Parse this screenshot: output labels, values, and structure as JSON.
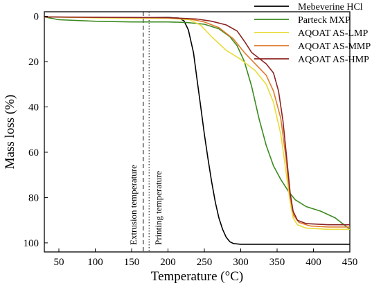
{
  "chart_data": {
    "type": "line",
    "title": "",
    "xlabel": "Temperature (°C)",
    "ylabel": "Mass loss (%)",
    "xlim": [
      30,
      450
    ],
    "ylim": [
      -2,
      104
    ],
    "y_inverted": true,
    "x_ticks": [
      50,
      100,
      150,
      200,
      250,
      300,
      350,
      400,
      450
    ],
    "y_ticks": [
      0,
      20,
      40,
      60,
      80,
      100
    ],
    "grid": false,
    "legend_position": "top-right",
    "series": [
      {
        "name": "Mebeverine HCl",
        "color": "#000000",
        "x": [
          30,
          100,
          150,
          200,
          215,
          222,
          228,
          235,
          240,
          245,
          250,
          255,
          260,
          265,
          270,
          275,
          280,
          285,
          290,
          300,
          350,
          450
        ],
        "y": [
          0.3,
          0.5,
          0.6,
          0.5,
          0.8,
          2,
          6,
          16,
          28,
          40,
          52,
          63,
          73,
          82,
          89,
          94,
          97.5,
          99.5,
          100.3,
          100.6,
          100.6,
          100.6
        ]
      },
      {
        "name": "Parteck MXP",
        "color": "#3a8a1e",
        "x": [
          30,
          50,
          100,
          150,
          200,
          225,
          250,
          270,
          285,
          295,
          305,
          315,
          325,
          335,
          345,
          355,
          365,
          375,
          390,
          410,
          430,
          450
        ],
        "y": [
          0.3,
          1.5,
          2.2,
          2.5,
          2.5,
          2.7,
          3.5,
          5.5,
          9,
          13,
          20,
          31,
          45,
          57,
          66,
          72,
          77,
          81,
          84,
          86,
          89,
          94
        ]
      },
      {
        "name": "AQOAT AS-LMP",
        "color": "#e8dc3a",
        "x": [
          30,
          100,
          150,
          200,
          230,
          245,
          260,
          280,
          300,
          320,
          335,
          345,
          355,
          362,
          368,
          372,
          378,
          390,
          420,
          450
        ],
        "y": [
          0.3,
          0.7,
          0.8,
          0.9,
          1.5,
          4,
          9,
          15,
          19,
          24,
          30,
          38,
          52,
          68,
          82,
          89,
          92,
          93.5,
          94,
          94
        ]
      },
      {
        "name": "AQOAT AS-MMP",
        "color": "#e07a2c",
        "x": [
          30,
          100,
          150,
          200,
          230,
          250,
          270,
          290,
          305,
          320,
          335,
          345,
          355,
          362,
          368,
          373,
          380,
          395,
          420,
          450
        ],
        "y": [
          0.3,
          0.5,
          0.6,
          0.7,
          1.2,
          2.5,
          5,
          10,
          16,
          21,
          26,
          33,
          45,
          62,
          80,
          88,
          91,
          92.5,
          93,
          93
        ]
      },
      {
        "name": "AQOAT AS-HMP",
        "color": "#8b2323",
        "x": [
          30,
          100,
          150,
          200,
          240,
          260,
          280,
          295,
          305,
          315,
          325,
          335,
          345,
          352,
          358,
          364,
          368,
          372,
          378,
          390,
          420,
          450
        ],
        "y": [
          0.3,
          0.4,
          0.5,
          0.6,
          1.2,
          2.2,
          3.8,
          6.5,
          11,
          16,
          18.5,
          21,
          25,
          33,
          46,
          65,
          78,
          86,
          90,
          91.5,
          92,
          92
        ]
      }
    ],
    "vertical_lines": [
      {
        "label": "Extrusion temperature",
        "x": 166,
        "style": "dashed"
      },
      {
        "label": "Printing temperature",
        "x": 174,
        "style": "dotted"
      }
    ]
  }
}
